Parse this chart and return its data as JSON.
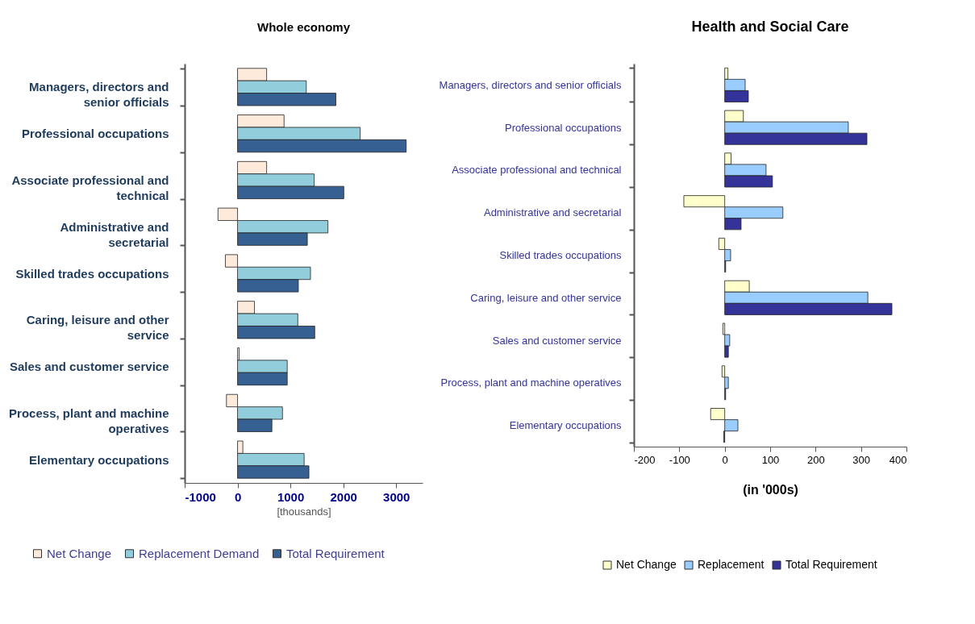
{
  "chart_data": [
    {
      "type": "bar",
      "orientation": "horizontal",
      "title": "Whole economy",
      "xlabel": "[thousands]",
      "categories": [
        "Managers, directors and senior officials",
        "Professional occupations",
        "Associate professional and technical",
        "Administrative and secretarial",
        "Skilled trades occupations",
        "Caring, leisure and other service",
        "Sales and customer service",
        "Process, plant and machine operatives",
        "Elementary occupations"
      ],
      "series": [
        {
          "name": "Net Change",
          "color": "#fdeadb",
          "values": [
            550,
            880,
            550,
            -370,
            -230,
            320,
            30,
            -210,
            100
          ]
        },
        {
          "name": "Replacement Demand",
          "color": "#92cddc",
          "values": [
            1300,
            2320,
            1450,
            1710,
            1380,
            1140,
            940,
            850,
            1260
          ]
        },
        {
          "name": "Total Requirement",
          "color": "#366092",
          "values": [
            1860,
            3190,
            2010,
            1320,
            1150,
            1460,
            940,
            650,
            1350
          ]
        }
      ],
      "xlim": [
        -1000,
        3500
      ],
      "xticks": [
        -1000,
        0,
        1000,
        2000,
        3000
      ],
      "grid": false,
      "legend": "bottom"
    },
    {
      "type": "bar",
      "orientation": "horizontal",
      "title": "Health and Social Care",
      "xlabel": "(in '000s)",
      "categories": [
        "Managers, directors and senior officials",
        "Professional occupations",
        "Associate professional and technical",
        "Administrative and secretarial",
        "Skilled trades occupations",
        "Caring, leisure and other service",
        "Sales and customer service",
        "Process, plant and machine operatives",
        "Elementary occupations"
      ],
      "series": [
        {
          "name": "Net Change",
          "color": "#ffffcc",
          "values": [
            7,
            41,
            14,
            -90,
            -13,
            54,
            -4,
            -6,
            -31
          ]
        },
        {
          "name": "Replacement",
          "color": "#99ccff",
          "values": [
            45,
            272,
            91,
            128,
            13,
            315,
            11,
            8,
            29
          ]
        },
        {
          "name": "Total Requirement",
          "color": "#333399",
          "values": [
            52,
            313,
            105,
            36,
            2,
            368,
            8,
            2,
            -2
          ]
        }
      ],
      "xlim": [
        -200,
        400
      ],
      "xticks": [
        -200,
        -100,
        0,
        100,
        200,
        300,
        400
      ],
      "grid": false,
      "legend": "bottom"
    }
  ]
}
